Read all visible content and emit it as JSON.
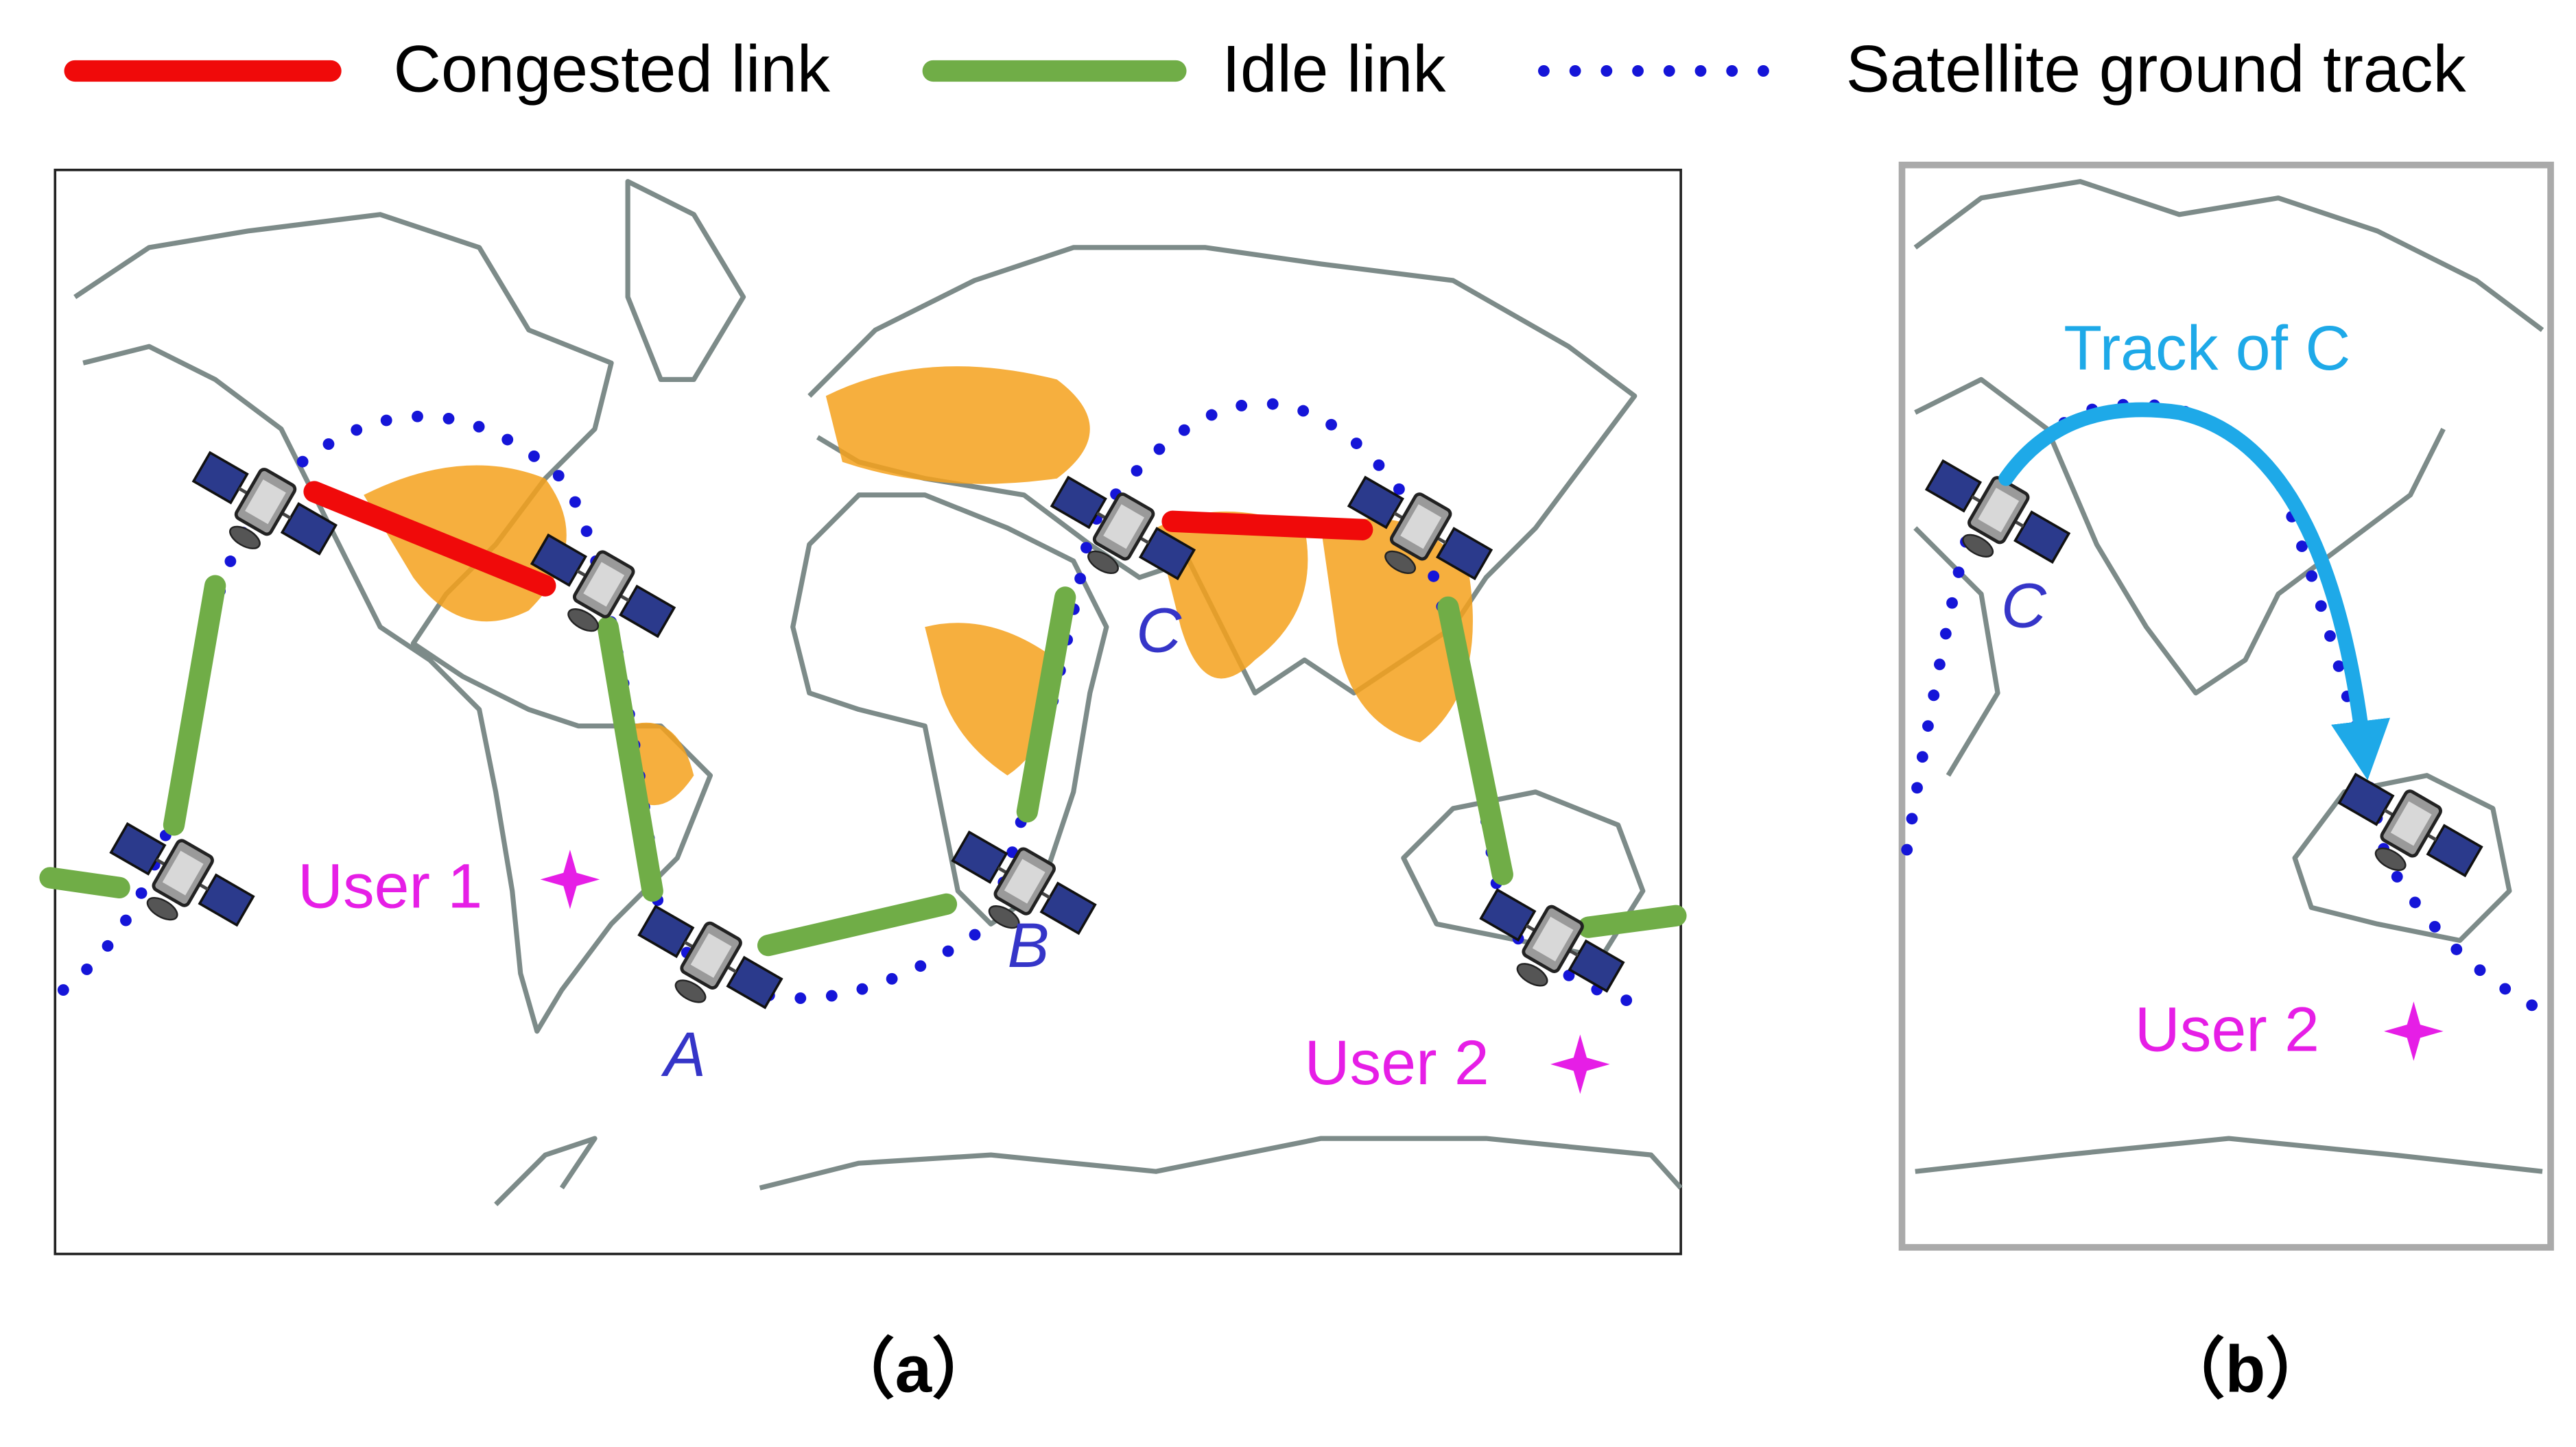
{
  "legend": [
    "Congested link",
    "Idle link",
    "Satellite ground track"
  ],
  "panel_a": {
    "user_1": "User 1",
    "user_2": "User 2",
    "sat_a": "A",
    "sat_b": "B",
    "sat_c": "C",
    "caption": "（a）"
  },
  "panel_b": {
    "track_label": "Track of C",
    "sat_c": "C",
    "user_2": "User 2",
    "caption": "（b）"
  }
}
